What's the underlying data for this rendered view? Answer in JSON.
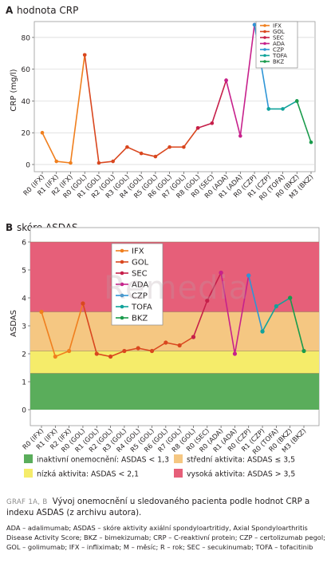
{
  "watermark": "Remedia",
  "charts": [
    {
      "panel_label": "A",
      "title": "hodnota CRP",
      "chart_data": {
        "type": "line",
        "title": "hodnota CRP",
        "ylabel": "CRP (mg/l)",
        "xlabel": "",
        "ylim": [
          0,
          90
        ],
        "yticks": [
          0,
          20,
          40,
          60,
          80
        ],
        "grid": true,
        "legend_position": "top-right",
        "categories": [
          "R0 (IFX)",
          "R1 (IFX)",
          "R2 (IFX)",
          "R0 (GOL)",
          "R1 (GOL)",
          "R2 (GOL)",
          "R3 (GOL)",
          "R4 (GOL)",
          "R5 (GOL)",
          "R6 (GOL)",
          "R7 (GOL)",
          "R8 (GOL)",
          "R0 (SEC)",
          "R0 (ADA)",
          "R1 (ADA)",
          "R0 (CZP)",
          "R1 (CZP)",
          "R0 (TOFA)",
          "R0 (BKZ)",
          "M3 (BKZ)"
        ],
        "series": [
          {
            "name": "IFX",
            "color": "#f07f1e",
            "values": [
              20,
              2,
              1,
              69,
              null,
              null,
              null,
              null,
              null,
              null,
              null,
              null,
              null,
              null,
              null,
              null,
              null,
              null,
              null,
              null
            ]
          },
          {
            "name": "GOL",
            "color": "#d9471f",
            "values": [
              null,
              null,
              null,
              69,
              1,
              2,
              11,
              7,
              5,
              11,
              11,
              23,
              null,
              null,
              null,
              null,
              null,
              null,
              null,
              null
            ]
          },
          {
            "name": "SEC",
            "color": "#c61f4a",
            "values": [
              null,
              null,
              null,
              null,
              null,
              null,
              null,
              null,
              null,
              null,
              null,
              23,
              26,
              53,
              null,
              null,
              null,
              null,
              null,
              null
            ]
          },
          {
            "name": "ADA",
            "color": "#c7218c",
            "values": [
              null,
              null,
              null,
              null,
              null,
              null,
              null,
              null,
              null,
              null,
              null,
              null,
              null,
              53,
              18,
              88,
              null,
              null,
              null,
              null
            ]
          },
          {
            "name": "CZP",
            "color": "#2e95d6",
            "values": [
              null,
              null,
              null,
              null,
              null,
              null,
              null,
              null,
              null,
              null,
              null,
              null,
              null,
              null,
              null,
              88,
              35,
              null,
              null,
              null
            ]
          },
          {
            "name": "TOFA",
            "color": "#11a39b",
            "values": [
              null,
              null,
              null,
              null,
              null,
              null,
              null,
              null,
              null,
              null,
              null,
              null,
              null,
              null,
              null,
              null,
              35,
              35,
              40,
              null
            ]
          },
          {
            "name": "BKZ",
            "color": "#1a9b4c",
            "values": [
              null,
              null,
              null,
              null,
              null,
              null,
              null,
              null,
              null,
              null,
              null,
              null,
              null,
              null,
              null,
              null,
              null,
              null,
              40,
              14
            ]
          }
        ]
      }
    },
    {
      "panel_label": "B",
      "title": "skóre ASDAS",
      "chart_data": {
        "type": "line",
        "title": "skóre ASDAS",
        "ylabel": "ASDAS",
        "xlabel": "",
        "ylim": [
          -0.2,
          6.2
        ],
        "yticks": [
          0,
          1,
          2,
          3,
          4,
          5,
          6
        ],
        "grid": false,
        "legend_position": "top-left",
        "bands": [
          {
            "from": 0,
            "to": 1.3,
            "color": "#5aad5b"
          },
          {
            "from": 1.3,
            "to": 2.1,
            "color": "#f5ec6a"
          },
          {
            "from": 2.1,
            "to": 3.5,
            "color": "#f5c782"
          },
          {
            "from": 3.5,
            "to": 6,
            "color": "#e65f79"
          }
        ],
        "categories": [
          "R0 (IFX)",
          "R1 (IFX)",
          "R2 (IFX)",
          "R0 (GOL)",
          "R1 (GOL)",
          "R2 (GOL)",
          "R3 (GOL)",
          "R4 (GOL)",
          "R5 (GOL)",
          "R6 (GOL)",
          "R7 (GOL)",
          "R8 (GOL)",
          "R0 (SEC)",
          "R0 (ADA)",
          "R1 (ADA)",
          "R0 (CZP)",
          "R1 (CZP)",
          "R0 (TOFA)",
          "R0 (BKZ)",
          "M3 (BKZ)"
        ],
        "series": [
          {
            "name": "IFX",
            "color": "#f07f1e",
            "values": [
              3.5,
              1.9,
              2.1,
              3.8,
              null,
              null,
              null,
              null,
              null,
              null,
              null,
              null,
              null,
              null,
              null,
              null,
              null,
              null,
              null,
              null
            ]
          },
          {
            "name": "GOL",
            "color": "#d9471f",
            "values": [
              null,
              null,
              null,
              3.8,
              2.0,
              1.9,
              2.1,
              2.2,
              2.1,
              2.4,
              2.3,
              2.6,
              null,
              null,
              null,
              null,
              null,
              null,
              null,
              null
            ]
          },
          {
            "name": "SEC",
            "color": "#c61f4a",
            "values": [
              null,
              null,
              null,
              null,
              null,
              null,
              null,
              null,
              null,
              null,
              null,
              2.6,
              3.9,
              4.9,
              null,
              null,
              null,
              null,
              null,
              null
            ]
          },
          {
            "name": "ADA",
            "color": "#c7218c",
            "values": [
              null,
              null,
              null,
              null,
              null,
              null,
              null,
              null,
              null,
              null,
              null,
              null,
              null,
              4.9,
              2.0,
              4.8,
              null,
              null,
              null,
              null
            ]
          },
          {
            "name": "CZP",
            "color": "#2e95d6",
            "values": [
              null,
              null,
              null,
              null,
              null,
              null,
              null,
              null,
              null,
              null,
              null,
              null,
              null,
              null,
              null,
              4.8,
              2.8,
              null,
              null,
              null
            ]
          },
          {
            "name": "TOFA",
            "color": "#11a39b",
            "values": [
              null,
              null,
              null,
              null,
              null,
              null,
              null,
              null,
              null,
              null,
              null,
              null,
              null,
              null,
              null,
              null,
              2.8,
              3.7,
              4.0,
              null
            ]
          },
          {
            "name": "BKZ",
            "color": "#1a9b4c",
            "values": [
              null,
              null,
              null,
              null,
              null,
              null,
              null,
              null,
              null,
              null,
              null,
              null,
              null,
              null,
              null,
              null,
              null,
              null,
              4.0,
              2.1
            ]
          }
        ]
      }
    }
  ],
  "band_legend": [
    {
      "label": "inaktivní onemocnění: ASDAS < 1,3",
      "color": "#5aad5b"
    },
    {
      "label": "střední aktivita: ASDAS ≤ 3,5",
      "color": "#f5c782"
    },
    {
      "label": "nízká aktivita: ASDAS < 2,1",
      "color": "#f5ec6a"
    },
    {
      "label": "vysoká aktivita: ASDAS > 3,5",
      "color": "#e65f79"
    }
  ],
  "caption": {
    "prefix": "GRAF 1A, B",
    "title": "Vývoj onemocnění u sledovaného pacienta podle hodnot CRP a indexu ASDAS (z archivu autora)."
  },
  "abbreviations": "ADA – adalimumab; ASDAS – skóre aktivity axiální spondyloartritidy, Axial Spondyloarthritis Disease Activity Score; BKZ – bimekizumab; CRP – C-reaktivní protein; CZP – certolizumab pegol; GOL – golimumab; IFX – infliximab; M – měsíc; R – rok; SEC – secukinumab; TOFA – tofacitinib"
}
